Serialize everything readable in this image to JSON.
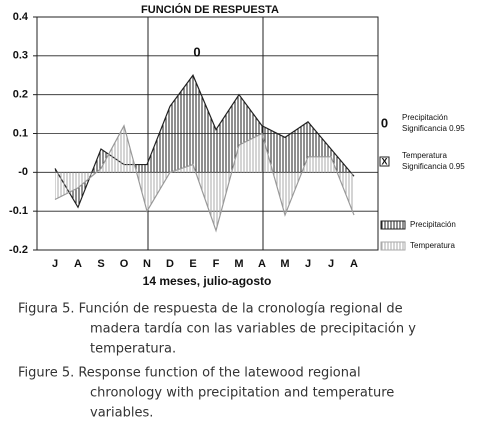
{
  "chart_data": {
    "type": "area",
    "title": "FUNCIÓN DE RESPUESTA",
    "xlabel": "14 meses, julio-agosto",
    "categories": [
      "J",
      "A",
      "S",
      "O",
      "N",
      "D",
      "E",
      "F",
      "M",
      "A",
      "M",
      "J",
      "J",
      "A"
    ],
    "series": [
      {
        "name": "Precipitación",
        "color": "#222222",
        "values": [
          0.01,
          -0.09,
          0.06,
          0.02,
          0.02,
          0.17,
          0.25,
          0.11,
          0.2,
          0.12,
          0.09,
          0.13,
          0.06,
          -0.01
        ]
      },
      {
        "name": "Temperatura",
        "color": "#999999",
        "values": [
          -0.07,
          -0.04,
          0.01,
          0.12,
          -0.1,
          0,
          0.02,
          -0.15,
          0.07,
          0.1,
          -0.11,
          0.04,
          0.04,
          -0.11
        ]
      }
    ],
    "ylim": [
      -0.2,
      0.4
    ],
    "yticks": [
      -0.2,
      -0.1,
      {
        "value": 0,
        "label": "-0"
      },
      0.1,
      0.2,
      0.3,
      0.4
    ],
    "grid": true,
    "annotations": [
      {
        "text": "0",
        "category_index": 6
      }
    ],
    "significance_legend": [
      {
        "symbol": "0",
        "name": "Precipitación",
        "label": "Significancia 0.95"
      },
      {
        "symbol": "X",
        "name": "Temperatura",
        "label": "Significancia 0.95"
      }
    ]
  },
  "caption": {
    "spanish": [
      "Figura 5. Función de respuesta de la cronología regional de",
      "madera tardía con  las variables de precipitación y",
      "temperatura."
    ],
    "english": [
      "Figure 5. Response function of the latewood regional",
      "chronology with precipitation and temperature",
      "variables."
    ]
  }
}
